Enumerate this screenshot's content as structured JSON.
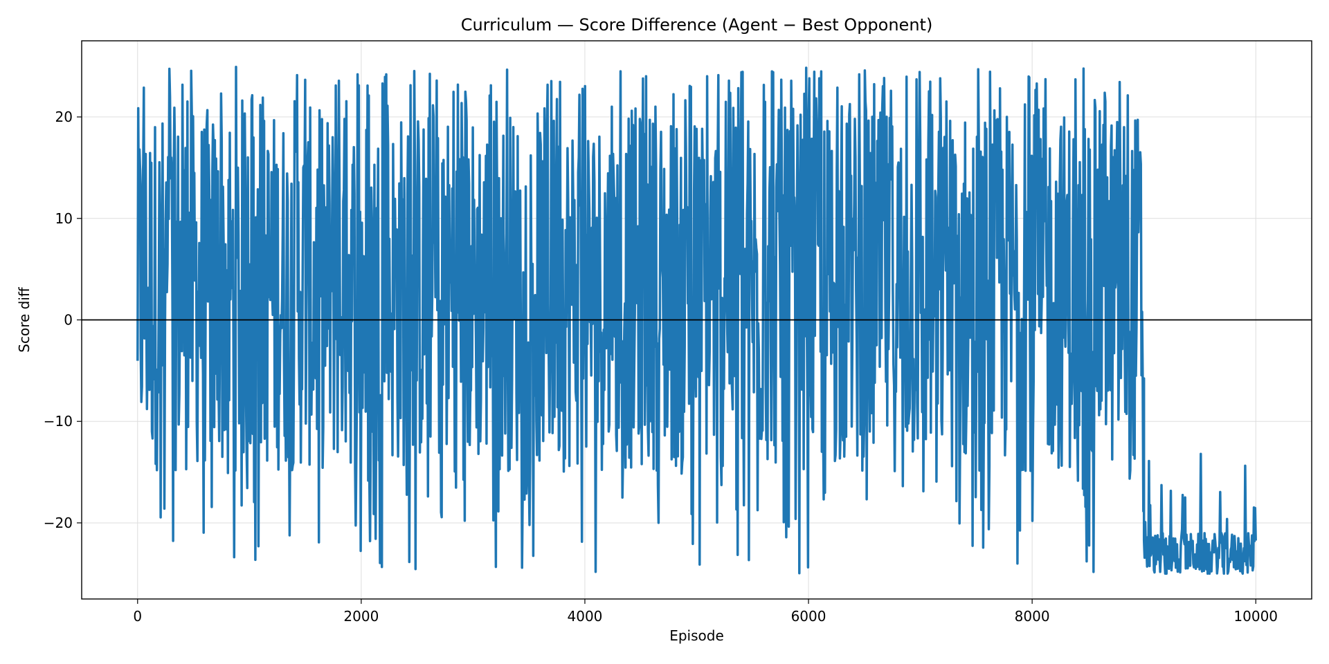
{
  "chart_data": {
    "type": "line",
    "title": "Curriculum — Score Difference (Agent − Best Opponent)",
    "xlabel": "Episode",
    "ylabel": "Score diff",
    "xlim": [
      -500,
      10500
    ],
    "ylim": [
      -27.5,
      27.5
    ],
    "x_ticks": [
      0,
      2000,
      4000,
      6000,
      8000,
      10000
    ],
    "x_tick_labels": [
      "0",
      "2000",
      "4000",
      "6000",
      "8000",
      "10000"
    ],
    "y_ticks": [
      -20,
      -10,
      0,
      10,
      20
    ],
    "y_tick_labels": [
      "−20",
      "−10",
      "0",
      "10",
      "20"
    ],
    "grid": true,
    "reference_line": {
      "y": 0,
      "color": "#000000"
    },
    "series": [
      {
        "color": "#1f77b4",
        "segments": [
          {
            "x_start": 0,
            "x_end": 9000,
            "y_min": -25,
            "y_max": 25,
            "typical_low": -15,
            "typical_high": 21
          },
          {
            "x_start": 9000,
            "x_end": 10000,
            "y_min": -25,
            "y_max": -13,
            "typical_low": -25,
            "typical_high": -21
          }
        ]
      }
    ]
  }
}
